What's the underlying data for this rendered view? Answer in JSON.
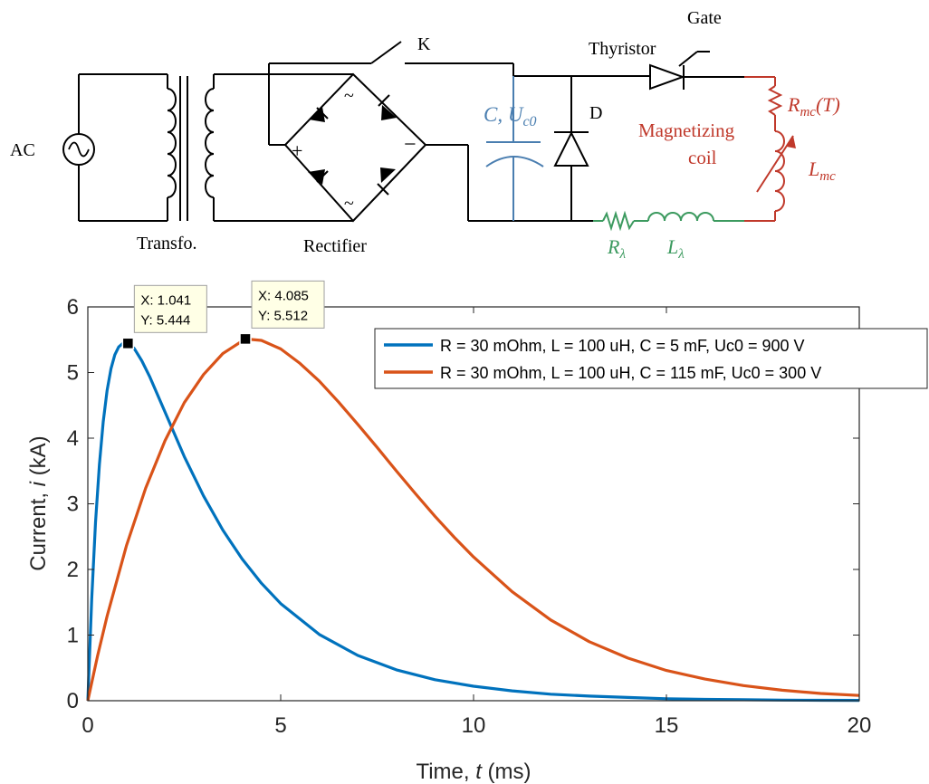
{
  "circuit": {
    "source_label": "AC",
    "transformer_label": "Transfo.",
    "rectifier_label": "Rectifier",
    "switch_label": "K",
    "thyristor_label": "Thyristor",
    "gate_label": "Gate",
    "diode_label": "D",
    "plus_sign": "+",
    "minus_sign": "−",
    "tilde_sign": "~",
    "capacitor_label": {
      "main": "C, U",
      "sub": "c0"
    },
    "coil_label_line1": "Magnetizing",
    "coil_label_line2": "coil",
    "rmc_label": {
      "main": "R",
      "sub": "mc",
      "suffix": "(T)"
    },
    "lmc_label": {
      "main": "L",
      "sub": "mc"
    },
    "rl_label": {
      "main": "R",
      "sub": "λ"
    },
    "ll_label": {
      "main": "L",
      "sub": "λ"
    },
    "colors": {
      "wire": "#000000",
      "capacitor": "#4a7eb0",
      "coil": "#c0392b",
      "leakage": "#3c9a5f"
    }
  },
  "chart_data": {
    "type": "line",
    "xlabel_prefix": "Time, ",
    "xlabel_var": "t",
    "xlabel_suffix": " (ms)",
    "ylabel_prefix": "Current, ",
    "ylabel_var": "i",
    "ylabel_suffix": " (kA)",
    "xlim": [
      0,
      20
    ],
    "ylim": [
      0,
      6
    ],
    "xticks": [
      0,
      5,
      10,
      15,
      20
    ],
    "yticks": [
      0,
      1,
      2,
      3,
      4,
      5,
      6
    ],
    "grid": false,
    "legend_position": "top-right",
    "series": [
      {
        "name": "R = 30 mOhm, L = 100 uH, C = 5 mF, Uc0 = 900 V",
        "color": "#0072bd",
        "x": [
          0,
          0.1,
          0.2,
          0.3,
          0.4,
          0.5,
          0.6,
          0.7,
          0.8,
          0.9,
          1.041,
          1.2,
          1.4,
          1.6,
          1.8,
          2,
          2.5,
          3,
          3.5,
          4,
          4.5,
          5,
          6,
          7,
          8,
          9,
          10,
          11,
          12,
          13,
          14,
          15,
          16,
          17,
          18,
          19,
          20
        ],
        "y": [
          0,
          1.55,
          2.72,
          3.6,
          4.25,
          4.73,
          5.06,
          5.27,
          5.39,
          5.44,
          5.444,
          5.37,
          5.18,
          4.94,
          4.67,
          4.4,
          3.72,
          3.12,
          2.6,
          2.16,
          1.79,
          1.48,
          1.01,
          0.69,
          0.47,
          0.32,
          0.22,
          0.15,
          0.1,
          0.07,
          0.05,
          0.03,
          0.02,
          0.015,
          0.01,
          0.007,
          0.005
        ]
      },
      {
        "name": "R = 30 mOhm, L = 100 uH, C = 115 mF, Uc0 = 300 V",
        "color": "#d95319",
        "x": [
          0,
          0.25,
          0.5,
          1,
          1.5,
          2,
          2.5,
          3,
          3.5,
          4.085,
          4.5,
          5,
          5.5,
          6,
          6.5,
          7,
          7.5,
          8,
          8.5,
          9,
          9.5,
          10,
          11,
          12,
          13,
          14,
          15,
          16,
          17,
          18,
          19,
          20
        ],
        "y": [
          0,
          0.68,
          1.29,
          2.36,
          3.24,
          3.96,
          4.54,
          4.97,
          5.29,
          5.512,
          5.49,
          5.36,
          5.14,
          4.87,
          4.55,
          4.21,
          3.86,
          3.5,
          3.15,
          2.81,
          2.49,
          2.19,
          1.66,
          1.23,
          0.9,
          0.65,
          0.46,
          0.33,
          0.23,
          0.16,
          0.11,
          0.08
        ]
      }
    ],
    "datatips": [
      {
        "series": 0,
        "x": 1.041,
        "y": 5.444,
        "x_text": "X: 1.041",
        "y_text": "Y: 5.444"
      },
      {
        "series": 1,
        "x": 4.085,
        "y": 5.512,
        "x_text": "X: 4.085",
        "y_text": "Y: 5.512"
      }
    ]
  }
}
